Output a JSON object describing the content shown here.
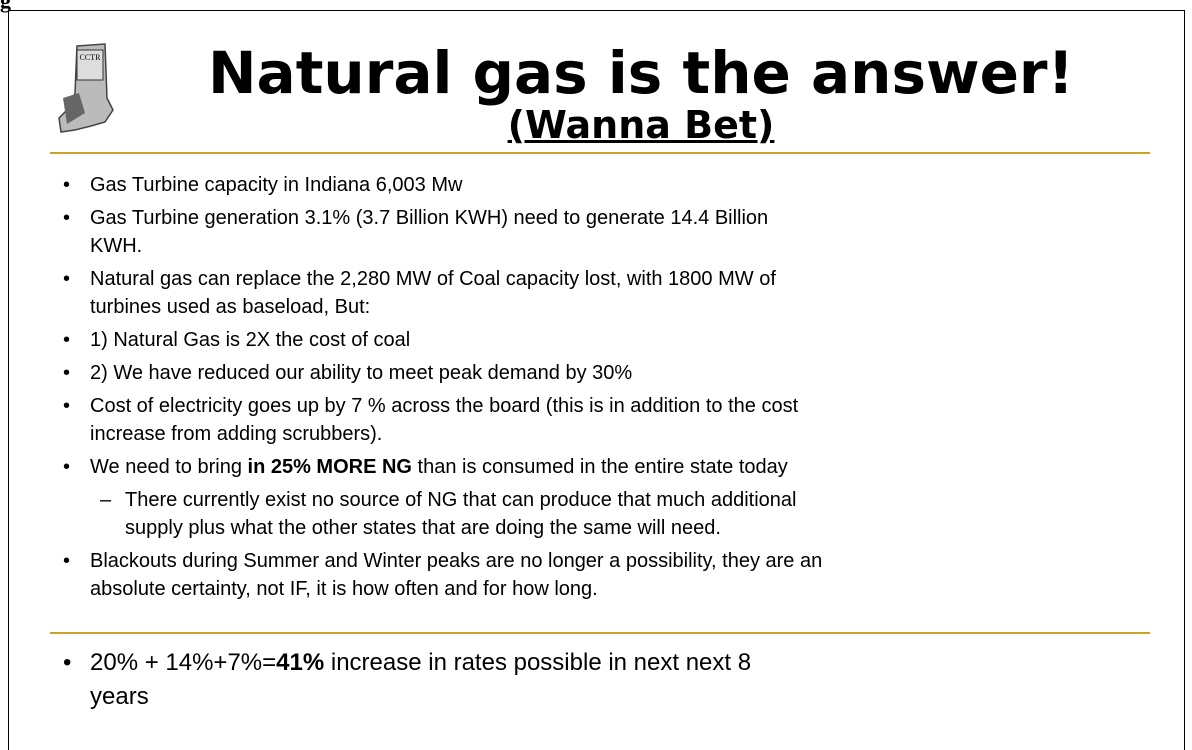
{
  "corner_text": "g",
  "logo_text": "CCTR",
  "header": {
    "title": "Natural gas is the answer!",
    "subtitle": "(Wanna Bet)"
  },
  "bullets": [
    {
      "marker": "•",
      "level": 1,
      "lines": [
        "Gas Turbine capacity in Indiana    6,003 Mw"
      ]
    },
    {
      "marker": "•",
      "level": 1,
      "lines": [
        "Gas Turbine generation   3.1%  (3.7 Billion KWH)  need to generate 14.4 Billion",
        "KWH."
      ]
    },
    {
      "marker": "•",
      "level": 1,
      "lines": [
        "Natural gas can replace the 2,280 MW of Coal capacity lost, with 1800 MW of",
        "turbines used as baseload, But:"
      ]
    },
    {
      "marker": "•",
      "level": 1,
      "lines": [
        "1) Natural Gas is 2X the cost of coal"
      ]
    },
    {
      "marker": "•",
      "level": 1,
      "lines": [
        " 2) We have reduced our ability to meet peak demand by 30%"
      ]
    },
    {
      "marker": "•",
      "level": 1,
      "lines": [
        "Cost of electricity goes up by 7 % across the board (this is in addition to the cost",
        "increase from adding scrubbers)."
      ]
    },
    {
      "marker": "•",
      "level": 1,
      "lines": [
        [
          {
            "text": "We need to bring "
          },
          {
            "text": "in 25% MORE NG",
            "bold": true
          },
          {
            "text": " than is consumed in the entire state today"
          }
        ]
      ]
    },
    {
      "marker": "–",
      "level": 2,
      "lines": [
        "There currently exist no source of NG that can produce that much additional",
        "supply  plus what the other states that are doing the same will need."
      ]
    },
    {
      "marker": "•",
      "level": 1,
      "lines": [
        "Blackouts during Summer and Winter peaks are no longer a possibility, they are an",
        "absolute certainty, not IF, it is how often and for how long."
      ]
    }
  ],
  "footer_bullet": {
    "marker": "•",
    "lines": [
      [
        {
          "text": "20% + 14%+7%="
        },
        {
          "text": "41%",
          "bold": true
        },
        {
          "text": " increase in rates possible in next  next 8"
        }
      ],
      "years"
    ]
  }
}
